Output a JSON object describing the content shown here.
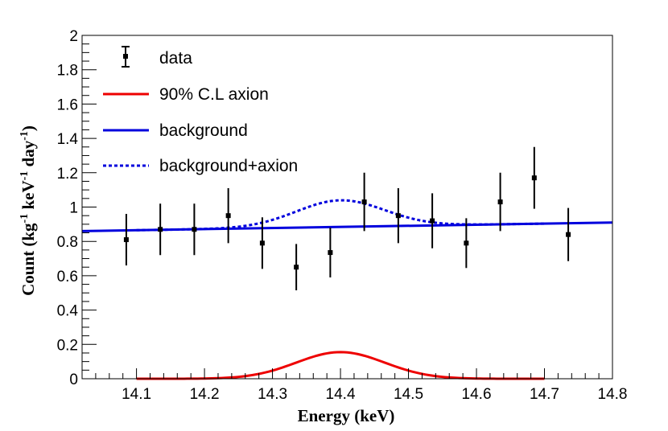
{
  "chart_data": {
    "type": "line",
    "xlabel": "Energy (keV)",
    "ylabel": {
      "parts": [
        "Count (kg",
        "-1",
        " keV",
        "-1",
        " day",
        "-1",
        ")"
      ]
    },
    "xlim": [
      14.02,
      14.8
    ],
    "ylim": [
      0,
      2
    ],
    "xticks": [
      "14.1",
      "14.2",
      "14.3",
      "14.4",
      "14.5",
      "14.6",
      "14.7",
      "14.8"
    ],
    "yticks": [
      "0",
      "0.2",
      "0.4",
      "0.6",
      "0.8",
      "1",
      "1.2",
      "1.4",
      "1.6",
      "1.8",
      "2"
    ],
    "grid": false,
    "legend_position": "top-left",
    "legend": {
      "data": "data",
      "axion": "90% C.L axion",
      "background": "background",
      "bg_axion": "background+axion"
    },
    "colors": {
      "data": "#000000",
      "axion": "#ee0000",
      "background": "#0000dd",
      "bg_axion": "#0000dd"
    },
    "data_points": [
      {
        "x": 14.085,
        "y": 0.81,
        "err": 0.15
      },
      {
        "x": 14.135,
        "y": 0.87,
        "err": 0.15
      },
      {
        "x": 14.185,
        "y": 0.87,
        "err": 0.15
      },
      {
        "x": 14.235,
        "y": 0.95,
        "err": 0.16
      },
      {
        "x": 14.285,
        "y": 0.79,
        "err": 0.15
      },
      {
        "x": 14.335,
        "y": 0.65,
        "err": 0.135
      },
      {
        "x": 14.385,
        "y": 0.735,
        "err": 0.145
      },
      {
        "x": 14.435,
        "y": 1.03,
        "err": 0.17
      },
      {
        "x": 14.485,
        "y": 0.95,
        "err": 0.16
      },
      {
        "x": 14.535,
        "y": 0.92,
        "err": 0.16
      },
      {
        "x": 14.585,
        "y": 0.79,
        "err": 0.145
      },
      {
        "x": 14.635,
        "y": 1.03,
        "err": 0.17
      },
      {
        "x": 14.685,
        "y": 1.17,
        "err": 0.18
      },
      {
        "x": 14.735,
        "y": 0.84,
        "err": 0.155
      }
    ],
    "background_line": {
      "x": [
        14.02,
        14.8
      ],
      "y": [
        0.86,
        0.91
      ]
    },
    "axion_curve": {
      "x_range": [
        14.1,
        14.7
      ],
      "peak_x": 14.4,
      "peak_y": 0.155,
      "sigma": 0.065
    },
    "bg_axion_curve": {
      "x_range": [
        14.1,
        14.7
      ]
    }
  }
}
